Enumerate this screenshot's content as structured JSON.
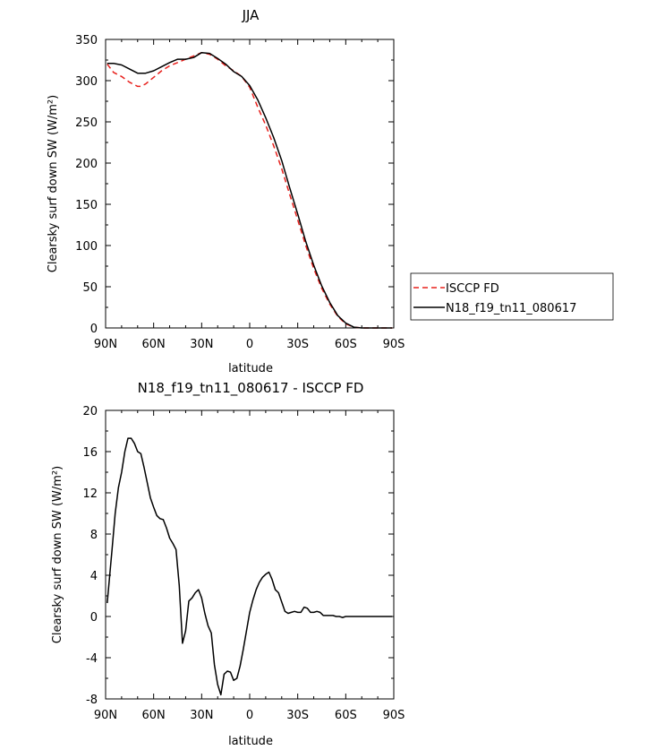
{
  "chart_data": [
    {
      "type": "line",
      "title": "JJA",
      "xlabel": "latitude",
      "ylabel": "Clearsky surf down SW (W/m²)",
      "x_tick_labels": [
        "90N",
        "60N",
        "30N",
        "0",
        "30S",
        "60S",
        "90S"
      ],
      "x_tick_values": [
        90,
        60,
        30,
        0,
        -30,
        -60,
        -90
      ],
      "xlim": [
        90,
        -90
      ],
      "ylim": [
        0,
        350
      ],
      "y_ticks": [
        0,
        50,
        100,
        150,
        200,
        250,
        300,
        350
      ],
      "legend": "outside-right",
      "series": [
        {
          "name": "ISCCP FD",
          "color": "#e8201c",
          "dash": "dashed",
          "x": [
            89,
            85,
            80,
            75,
            70,
            68,
            65,
            60,
            55,
            50,
            45,
            40,
            35,
            30,
            25,
            20,
            15,
            10,
            5,
            0,
            -5,
            -10,
            -15,
            -20,
            -25,
            -30,
            -35,
            -40,
            -45,
            -50,
            -55,
            -60,
            -65,
            -70,
            -75,
            -80,
            -85,
            -89
          ],
          "y": [
            320,
            310,
            305,
            298,
            293,
            293,
            296,
            304,
            312,
            318,
            322,
            326,
            330,
            334,
            332,
            326,
            318,
            312,
            305,
            292,
            268,
            246,
            221,
            193,
            162,
            131,
            100,
            72,
            48,
            29,
            14,
            5,
            1,
            0,
            0,
            0,
            0,
            0
          ]
        },
        {
          "name": "N18_f19_tn11_080617",
          "color": "#000000",
          "dash": "solid",
          "x": [
            89,
            85,
            80,
            75,
            70,
            65,
            60,
            55,
            50,
            45,
            40,
            35,
            30,
            25,
            20,
            15,
            10,
            5,
            0,
            -5,
            -10,
            -15,
            -20,
            -25,
            -30,
            -35,
            -40,
            -45,
            -50,
            -55,
            -60,
            -65,
            -70,
            -75,
            -80,
            -85,
            -89
          ],
          "y": [
            321,
            321,
            319,
            314,
            309,
            309,
            312,
            317,
            322,
            326,
            326,
            328,
            334,
            333,
            327,
            320,
            311,
            305,
            294,
            277,
            255,
            231,
            203,
            170,
            138,
            105,
            76,
            51,
            31,
            15,
            6,
            1,
            0,
            0,
            0,
            0,
            0
          ]
        }
      ]
    },
    {
      "type": "line",
      "title": "N18_f19_tn11_080617 - ISCCP FD",
      "xlabel": "latitude",
      "ylabel": "Clearsky surf down SW (W/m²)",
      "x_tick_labels": [
        "90N",
        "60N",
        "30N",
        "0",
        "30S",
        "60S",
        "90S"
      ],
      "x_tick_values": [
        90,
        60,
        30,
        0,
        -30,
        -60,
        -90
      ],
      "xlim": [
        90,
        -90
      ],
      "ylim": [
        -8,
        20
      ],
      "y_ticks": [
        -8,
        -4,
        0,
        4,
        8,
        12,
        16,
        20
      ],
      "series": [
        {
          "color": "#000000",
          "x": [
            89,
            86,
            84,
            82,
            80,
            78,
            76,
            74,
            72,
            70,
            68,
            66,
            64,
            62,
            60,
            58,
            56,
            54,
            52,
            50,
            48,
            46,
            44,
            42,
            40,
            38,
            36,
            34,
            32,
            30,
            28,
            26,
            24,
            22,
            20,
            18,
            16,
            14,
            12,
            10,
            8,
            6,
            4,
            2,
            0,
            -2,
            -4,
            -6,
            -8,
            -10,
            -12,
            -14,
            -16,
            -18,
            -20,
            -22,
            -24,
            -26,
            -28,
            -30,
            -32,
            -34,
            -36,
            -38,
            -40,
            -42,
            -44,
            -46,
            -48,
            -50,
            -52,
            -54,
            -56,
            -58,
            -60,
            -62,
            -64,
            -66,
            -68,
            -70,
            -72,
            -74,
            -76,
            -78,
            -80,
            -82,
            -84,
            -86,
            -88,
            -89
          ],
          "y": [
            1.3,
            6.5,
            10.0,
            12.5,
            14.0,
            16.0,
            17.3,
            17.3,
            16.8,
            16.0,
            15.8,
            14.5,
            13.0,
            11.5,
            10.6,
            9.8,
            9.5,
            9.4,
            8.6,
            7.6,
            7.1,
            6.5,
            3.0,
            -2.6,
            -1.4,
            1.5,
            1.8,
            2.3,
            2.6,
            1.8,
            0.3,
            -0.9,
            -1.6,
            -4.7,
            -6.6,
            -7.6,
            -5.6,
            -5.3,
            -5.4,
            -6.2,
            -6.0,
            -4.8,
            -3.2,
            -1.4,
            0.4,
            1.6,
            2.6,
            3.3,
            3.8,
            4.1,
            4.3,
            3.6,
            2.6,
            2.3,
            1.4,
            0.5,
            0.3,
            0.4,
            0.5,
            0.4,
            0.4,
            0.9,
            0.8,
            0.4,
            0.4,
            0.5,
            0.4,
            0.1,
            0.1,
            0.1,
            0.1,
            0.0,
            0.0,
            -0.1,
            0.0,
            0.0,
            0.0,
            0.0,
            0.0,
            0.0,
            0.0,
            0.0,
            0.0,
            0.0,
            0.0,
            0.0,
            0.0,
            0.0,
            0.0,
            0.0
          ]
        }
      ]
    }
  ]
}
